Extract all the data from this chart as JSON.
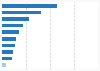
{
  "values": [
    20.7,
    14.8,
    10.2,
    7.8,
    6.5,
    5.4,
    4.8,
    4.3,
    3.9,
    1.5
  ],
  "bar_color": "#2678bf",
  "bar_color_last": "#a8c9e8",
  "background_color": "#f9f9f9",
  "plot_bg_color": "#ffffff",
  "xlim": [
    0,
    36
  ],
  "grid_ticks": [
    9,
    18,
    27,
    36
  ],
  "grid_color": "#cccccc"
}
